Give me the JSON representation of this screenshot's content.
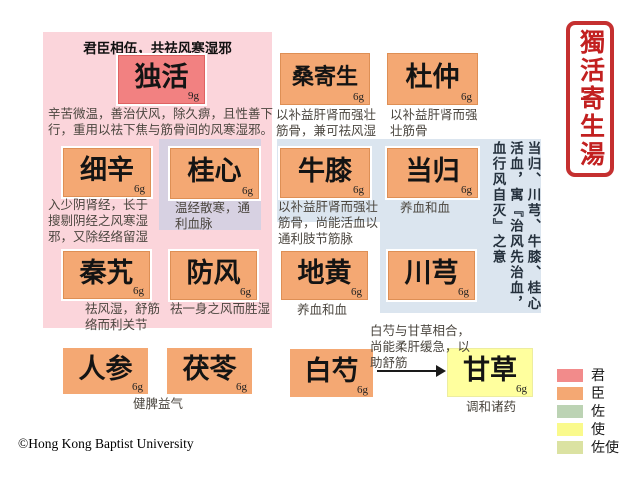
{
  "seal": {
    "title": "獨活寄生湯",
    "color": "#c22020"
  },
  "copyright": "©Hong Kong Baptist University",
  "colors": {
    "king": "#f28181",
    "minister": "#f4a873",
    "envoy": "#ffff9e",
    "pink_group_bg": "#fbd5db",
    "blue_group_bg": "#dbe5ef",
    "purple_overlap_bg": "#d7d1e2"
  },
  "groups": {
    "king_minister_header": "君臣相伍，共祛风寒湿邪"
  },
  "herbs": {
    "duhuo": {
      "name": "独活",
      "dose": "9g",
      "role": "君",
      "desc": "辛苦微温，善治伏风，除久痹，且性善下行，重用以祛下焦与筋骨间的风寒湿邪。"
    },
    "sangjisheng": {
      "name": "桑寄生",
      "dose": "6g",
      "role": "臣",
      "desc": "以补益肝肾而强壮筋骨，兼可祛风湿"
    },
    "duzhong": {
      "name": "杜仲",
      "dose": "6g",
      "role": "臣",
      "desc": "以补益肝肾而强壮筋骨"
    },
    "xixin": {
      "name": "细辛",
      "dose": "6g",
      "role": "臣",
      "desc": "入少阴肾经，长于搜剔阴经之风寒湿邪，又除经络留湿"
    },
    "guixin": {
      "name": "桂心",
      "dose": "6g",
      "role": "臣",
      "desc": "温经散寒，通利血脉"
    },
    "niuxi": {
      "name": "牛膝",
      "dose": "6g",
      "role": "臣",
      "desc": "以补益肝肾而强壮筋骨，尚能活血以通利肢节筋脉"
    },
    "danggui": {
      "name": "当归",
      "dose": "6g",
      "role": "臣",
      "desc": "养血和血"
    },
    "qinjiao": {
      "name": "秦艽",
      "dose": "6g",
      "role": "臣",
      "desc": "祛风湿，舒筋络而利关节"
    },
    "fangfeng": {
      "name": "防风",
      "dose": "6g",
      "role": "臣",
      "desc": "祛一身之风而胜湿"
    },
    "dihuang": {
      "name": "地黄",
      "dose": "6g",
      "role": "臣",
      "desc": "养血和血"
    },
    "chuanxiong": {
      "name": "川芎",
      "dose": "6g",
      "role": "臣",
      "desc": ""
    },
    "renshen": {
      "name": "人参",
      "dose": "6g",
      "role": "佐"
    },
    "fuling": {
      "name": "茯苓",
      "dose": "6g",
      "role": "佐"
    },
    "baishao": {
      "name": "白芍",
      "dose": "6g",
      "role": "佐"
    },
    "gancao": {
      "name": "甘草",
      "dose": "6g",
      "role": "使",
      "desc": "调和诸药"
    }
  },
  "notes": {
    "renshen_fuling": "健脾益气",
    "baishao_gancao": "白芍与甘草相合，尚能柔肝缓急，以助舒筋",
    "blood_vertical": "当归、川芎、牛膝、桂心活血，寓『治风先治血，血行风自灭』之意"
  },
  "legend": {
    "items": [
      {
        "label": "君",
        "color": "#f28b8b"
      },
      {
        "label": "臣",
        "color": "#f4a873"
      },
      {
        "label": "佐",
        "color": "#bcd3b4"
      },
      {
        "label": "使",
        "color": "#fafa8c"
      },
      {
        "label": "佐使",
        "color": "#dbe2a2"
      }
    ]
  }
}
